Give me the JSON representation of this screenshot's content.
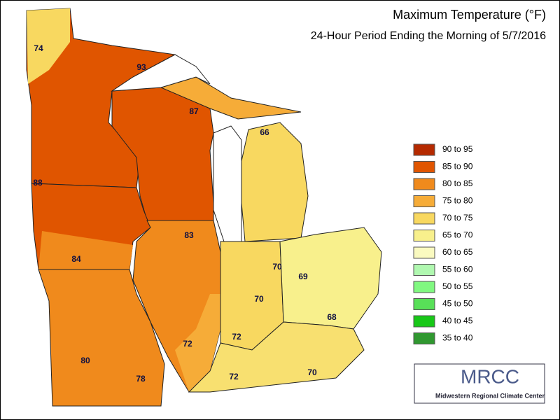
{
  "title": "Maximum Temperature (°F)",
  "subtitle": "24-Hour Period Ending the Morning of 5/7/2016",
  "legend": [
    {
      "label": "90 to 95",
      "color": "#b52a00"
    },
    {
      "label": "85 to 90",
      "color": "#e05500"
    },
    {
      "label": "80 to 85",
      "color": "#f08a1c"
    },
    {
      "label": "75 to 80",
      "color": "#f6ac38"
    },
    {
      "label": "70 to 75",
      "color": "#f8d860"
    },
    {
      "label": "65 to 70",
      "color": "#f8f08c"
    },
    {
      "label": "60 to 65",
      "color": "#fafac0"
    },
    {
      "label": "55 to 60",
      "color": "#b0f8b0"
    },
    {
      "label": "50 to 55",
      "color": "#80f880"
    },
    {
      "label": "45 to 50",
      "color": "#58e058"
    },
    {
      "label": "40 to 45",
      "color": "#18c818"
    },
    {
      "label": "35 to 40",
      "color": "#309830"
    }
  ],
  "labels": [
    "74",
    "93",
    "87",
    "66",
    "88",
    "83",
    "84",
    "70",
    "69",
    "70",
    "68",
    "72",
    "72",
    "80",
    "78",
    "72",
    "70"
  ],
  "logo": {
    "name": "MRCC",
    "caption": "Midwestern Regional Climate Center"
  }
}
